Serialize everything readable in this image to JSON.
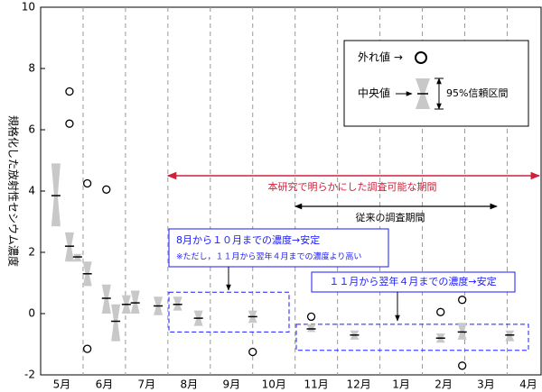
{
  "chart_data": {
    "type": "box",
    "ylabel": "規格化した放射性セシウム濃度",
    "months": [
      "5月",
      "6月",
      "7月",
      "8月",
      "9月",
      "10月",
      "11月",
      "12月",
      "1月",
      "2月",
      "3月",
      "4月"
    ],
    "xlim": [
      0,
      11.8
    ],
    "ylim": [
      -2,
      10
    ],
    "yticks": [
      -2,
      0,
      2,
      4,
      6,
      8,
      10
    ],
    "color": "#c8c8c8",
    "boxes": {
      "x": [
        0.36,
        0.68,
        0.87,
        1.1,
        1.55,
        1.77,
        2.02,
        2.23,
        2.77,
        3.23,
        3.72,
        5.0,
        6.38,
        7.4,
        9.43,
        9.94,
        11.06
      ],
      "low": [
        2.85,
        1.7,
        1.7,
        0.9,
        0.0,
        -0.9,
        0.0,
        0.0,
        -0.05,
        0.1,
        -0.4,
        -0.3,
        -0.6,
        -0.85,
        -0.95,
        -0.85,
        -0.9
      ],
      "median": [
        3.85,
        2.2,
        1.85,
        1.3,
        0.5,
        -0.25,
        0.3,
        0.35,
        0.25,
        0.3,
        -0.15,
        -0.1,
        -0.5,
        -0.7,
        -0.8,
        -0.6,
        -0.7
      ],
      "high": [
        4.9,
        2.65,
        1.95,
        1.7,
        0.95,
        0.3,
        0.6,
        0.75,
        0.55,
        0.55,
        0.1,
        0.1,
        -0.35,
        -0.55,
        -0.65,
        -0.3,
        -0.55
      ]
    },
    "outliers": {
      "x": [
        0.68,
        0.68,
        1.1,
        1.55,
        1.1,
        5.0,
        6.38,
        9.43,
        9.94,
        9.94
      ],
      "y": [
        7.25,
        6.2,
        4.25,
        4.05,
        -1.15,
        -1.25,
        -0.1,
        0.05,
        0.45,
        -1.7
      ]
    },
    "legend": {
      "outlier": "外れ値 →",
      "median": "中央値",
      "ci": "95%信頼区間"
    },
    "annotations": {
      "study_period": "本研究で明らかにした調査可能な期間",
      "previous_period": "従来の調査期間",
      "stable1": "8月から１０月までの濃度→安定",
      "stable1_note": "※ただし，１１月から翌年４月までの濃度より高い",
      "stable2": "１１月から翌年４月までの濃度→安定"
    }
  }
}
